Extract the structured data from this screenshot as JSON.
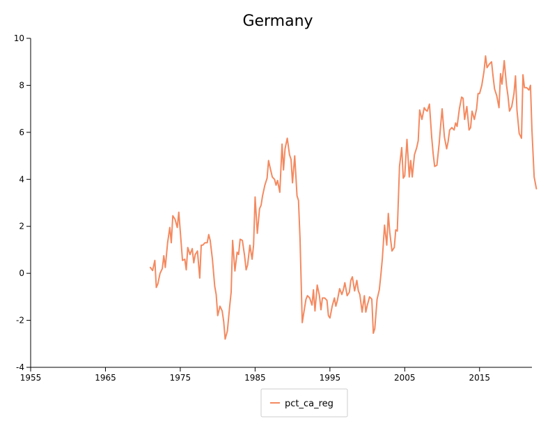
{
  "chart_data": {
    "type": "line",
    "title": "Germany",
    "xlabel": "",
    "ylabel": "",
    "xlim": [
      1955,
      2022
    ],
    "ylim": [
      -4,
      10
    ],
    "x_ticks": [
      "1955",
      "1965",
      "1975",
      "1985",
      "1995",
      "2005",
      "2015"
    ],
    "y_ticks": [
      "-4",
      "-2",
      "0",
      "2",
      "4",
      "6",
      "8",
      "10"
    ],
    "grid": false,
    "legend_position": "bottom-center",
    "series": [
      {
        "name": "pct_ca_reg",
        "color": "#f4895f",
        "points": [
          [
            1971.0,
            0.25
          ],
          [
            1971.3,
            0.12
          ],
          [
            1971.6,
            0.55
          ],
          [
            1971.8,
            -0.6
          ],
          [
            1972.0,
            -0.45
          ],
          [
            1972.3,
            0.0
          ],
          [
            1972.6,
            0.2
          ],
          [
            1972.8,
            0.75
          ],
          [
            1973.0,
            0.25
          ],
          [
            1973.3,
            1.3
          ],
          [
            1973.6,
            1.95
          ],
          [
            1973.8,
            1.3
          ],
          [
            1974.0,
            2.45
          ],
          [
            1974.3,
            2.3
          ],
          [
            1974.6,
            1.95
          ],
          [
            1974.8,
            2.6
          ],
          [
            1975.0,
            1.8
          ],
          [
            1975.3,
            0.55
          ],
          [
            1975.6,
            0.6
          ],
          [
            1975.8,
            0.15
          ],
          [
            1976.0,
            1.1
          ],
          [
            1976.3,
            0.8
          ],
          [
            1976.6,
            1.05
          ],
          [
            1976.8,
            0.45
          ],
          [
            1977.0,
            0.8
          ],
          [
            1977.3,
            0.95
          ],
          [
            1977.6,
            -0.2
          ],
          [
            1977.8,
            1.2
          ],
          [
            1978.0,
            1.2
          ],
          [
            1978.3,
            1.3
          ],
          [
            1978.6,
            1.3
          ],
          [
            1978.8,
            1.65
          ],
          [
            1979.0,
            1.4
          ],
          [
            1979.3,
            0.6
          ],
          [
            1979.6,
            -0.55
          ],
          [
            1979.8,
            -0.9
          ],
          [
            1980.0,
            -1.8
          ],
          [
            1980.3,
            -1.4
          ],
          [
            1980.6,
            -1.6
          ],
          [
            1980.8,
            -2.05
          ],
          [
            1981.0,
            -2.8
          ],
          [
            1981.3,
            -2.45
          ],
          [
            1981.6,
            -1.4
          ],
          [
            1981.8,
            -0.8
          ],
          [
            1982.0,
            1.4
          ],
          [
            1982.3,
            0.1
          ],
          [
            1982.6,
            0.9
          ],
          [
            1982.8,
            0.8
          ],
          [
            1983.0,
            1.45
          ],
          [
            1983.3,
            1.4
          ],
          [
            1983.6,
            0.75
          ],
          [
            1983.8,
            0.15
          ],
          [
            1984.0,
            0.35
          ],
          [
            1984.3,
            1.2
          ],
          [
            1984.6,
            0.6
          ],
          [
            1984.8,
            1.2
          ],
          [
            1985.0,
            3.25
          ],
          [
            1985.3,
            1.7
          ],
          [
            1985.6,
            2.75
          ],
          [
            1985.8,
            2.9
          ],
          [
            1986.0,
            3.3
          ],
          [
            1986.3,
            3.75
          ],
          [
            1986.6,
            4.05
          ],
          [
            1986.8,
            4.8
          ],
          [
            1987.0,
            4.5
          ],
          [
            1987.3,
            4.1
          ],
          [
            1987.6,
            4.0
          ],
          [
            1987.8,
            3.75
          ],
          [
            1988.0,
            3.95
          ],
          [
            1988.3,
            3.45
          ],
          [
            1988.6,
            5.5
          ],
          [
            1988.8,
            4.4
          ],
          [
            1989.0,
            5.3
          ],
          [
            1989.3,
            5.75
          ],
          [
            1989.6,
            5.05
          ],
          [
            1989.8,
            4.85
          ],
          [
            1990.0,
            3.85
          ],
          [
            1990.3,
            5.0
          ],
          [
            1990.6,
            3.3
          ],
          [
            1990.8,
            3.1
          ],
          [
            1991.0,
            1.5
          ],
          [
            1991.3,
            -2.1
          ],
          [
            1991.6,
            -1.5
          ],
          [
            1991.8,
            -1.1
          ],
          [
            1992.0,
            -0.95
          ],
          [
            1992.3,
            -1.05
          ],
          [
            1992.6,
            -1.35
          ],
          [
            1992.8,
            -0.7
          ],
          [
            1993.0,
            -1.6
          ],
          [
            1993.3,
            -0.5
          ],
          [
            1993.6,
            -0.95
          ],
          [
            1993.8,
            -1.55
          ],
          [
            1994.0,
            -1.05
          ],
          [
            1994.3,
            -1.05
          ],
          [
            1994.6,
            -1.15
          ],
          [
            1994.8,
            -1.8
          ],
          [
            1995.0,
            -1.9
          ],
          [
            1995.3,
            -1.4
          ],
          [
            1995.6,
            -1.05
          ],
          [
            1995.8,
            -1.4
          ],
          [
            1996.0,
            -1.15
          ],
          [
            1996.3,
            -0.65
          ],
          [
            1996.6,
            -0.9
          ],
          [
            1996.8,
            -0.7
          ],
          [
            1997.0,
            -0.4
          ],
          [
            1997.3,
            -0.95
          ],
          [
            1997.6,
            -0.8
          ],
          [
            1997.8,
            -0.3
          ],
          [
            1998.0,
            -0.15
          ],
          [
            1998.3,
            -0.75
          ],
          [
            1998.6,
            -0.3
          ],
          [
            1998.8,
            -0.75
          ],
          [
            1999.0,
            -0.9
          ],
          [
            1999.3,
            -1.65
          ],
          [
            1999.6,
            -0.95
          ],
          [
            1999.8,
            -1.65
          ],
          [
            2000.0,
            -1.35
          ],
          [
            2000.3,
            -1.0
          ],
          [
            2000.6,
            -1.1
          ],
          [
            2000.8,
            -2.55
          ],
          [
            2001.0,
            -2.35
          ],
          [
            2001.3,
            -1.1
          ],
          [
            2001.6,
            -0.7
          ],
          [
            2001.8,
            -0.1
          ],
          [
            2002.0,
            0.6
          ],
          [
            2002.3,
            2.05
          ],
          [
            2002.6,
            1.2
          ],
          [
            2002.8,
            2.55
          ],
          [
            2003.0,
            1.75
          ],
          [
            2003.3,
            0.95
          ],
          [
            2003.6,
            1.1
          ],
          [
            2003.8,
            1.85
          ],
          [
            2004.0,
            1.8
          ],
          [
            2004.3,
            4.55
          ],
          [
            2004.6,
            5.35
          ],
          [
            2004.8,
            4.05
          ],
          [
            2005.0,
            4.15
          ],
          [
            2005.3,
            5.7
          ],
          [
            2005.6,
            4.1
          ],
          [
            2005.8,
            4.8
          ],
          [
            2006.0,
            4.1
          ],
          [
            2006.3,
            5.05
          ],
          [
            2006.6,
            5.35
          ],
          [
            2006.8,
            5.65
          ],
          [
            2007.0,
            6.95
          ],
          [
            2007.3,
            6.55
          ],
          [
            2007.6,
            7.05
          ],
          [
            2007.8,
            6.95
          ],
          [
            2008.0,
            6.9
          ],
          [
            2008.3,
            7.2
          ],
          [
            2008.6,
            5.8
          ],
          [
            2008.8,
            5.1
          ],
          [
            2009.0,
            4.55
          ],
          [
            2009.3,
            4.6
          ],
          [
            2009.6,
            5.5
          ],
          [
            2009.8,
            6.3
          ],
          [
            2010.0,
            7.0
          ],
          [
            2010.3,
            5.8
          ],
          [
            2010.6,
            5.3
          ],
          [
            2010.8,
            5.6
          ],
          [
            2011.0,
            6.1
          ],
          [
            2011.3,
            6.2
          ],
          [
            2011.6,
            6.1
          ],
          [
            2011.8,
            6.4
          ],
          [
            2012.0,
            6.25
          ],
          [
            2012.3,
            7.0
          ],
          [
            2012.6,
            7.5
          ],
          [
            2012.8,
            7.45
          ],
          [
            2013.0,
            6.55
          ],
          [
            2013.3,
            7.1
          ],
          [
            2013.6,
            6.1
          ],
          [
            2013.8,
            6.2
          ],
          [
            2014.0,
            6.9
          ],
          [
            2014.3,
            6.55
          ],
          [
            2014.6,
            7.0
          ],
          [
            2014.8,
            7.65
          ],
          [
            2015.0,
            7.65
          ],
          [
            2015.3,
            8.0
          ],
          [
            2015.6,
            8.6
          ],
          [
            2015.8,
            9.25
          ],
          [
            2016.0,
            8.75
          ],
          [
            2016.3,
            8.9
          ],
          [
            2016.6,
            9.0
          ],
          [
            2016.8,
            8.4
          ],
          [
            2017.0,
            7.85
          ],
          [
            2017.3,
            7.55
          ],
          [
            2017.6,
            7.05
          ],
          [
            2017.8,
            8.5
          ],
          [
            2018.0,
            8.05
          ],
          [
            2018.3,
            9.05
          ],
          [
            2018.6,
            8.0
          ],
          [
            2018.8,
            7.55
          ],
          [
            2019.0,
            6.9
          ],
          [
            2019.3,
            7.1
          ],
          [
            2019.6,
            7.65
          ],
          [
            2019.8,
            8.4
          ],
          [
            2020.0,
            6.95
          ],
          [
            2020.3,
            5.95
          ],
          [
            2020.6,
            5.75
          ],
          [
            2020.8,
            8.45
          ],
          [
            2021.0,
            7.9
          ],
          [
            2021.3,
            7.9
          ],
          [
            2021.6,
            7.8
          ],
          [
            2021.8,
            8.0
          ],
          [
            2022.0,
            6.1
          ],
          [
            2022.3,
            4.1
          ],
          [
            2022.6,
            3.6
          ]
        ]
      }
    ]
  }
}
